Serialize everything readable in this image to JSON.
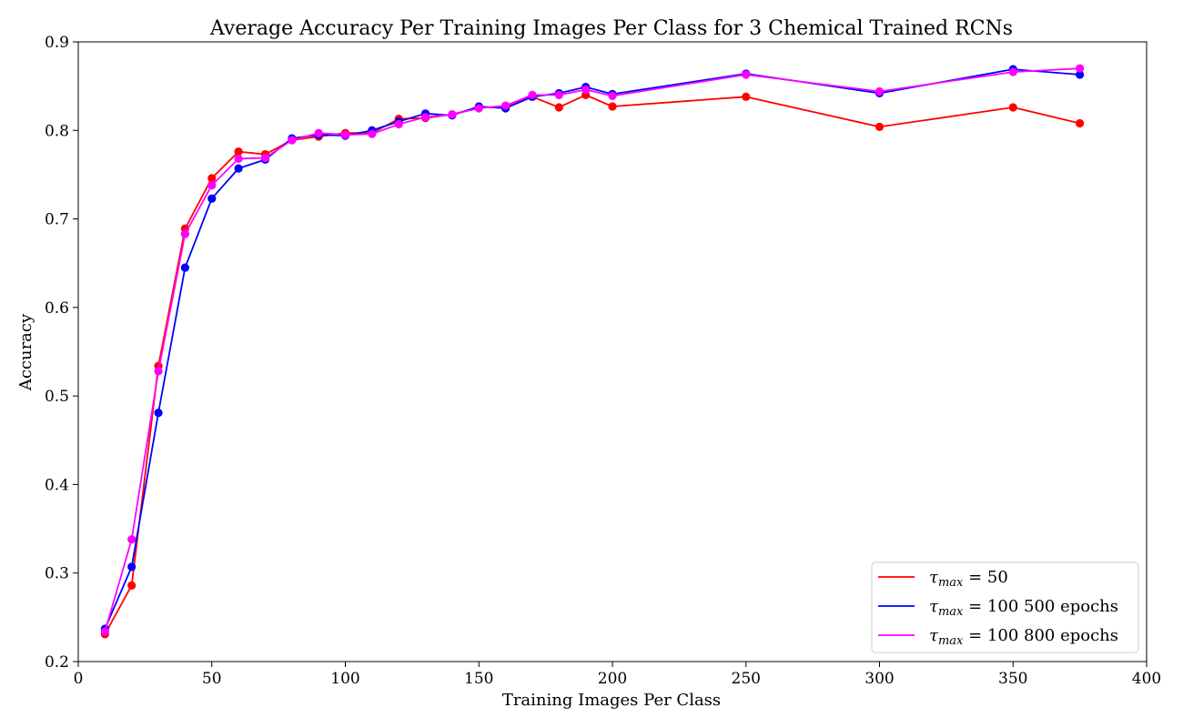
{
  "chart_data": {
    "type": "line",
    "title": "Average Accuracy Per Training Images Per Class for 3 Chemical Trained RCNs",
    "xlabel": "Training Images Per Class",
    "ylabel": "Accuracy",
    "xlim": [
      0,
      400
    ],
    "ylim": [
      0.2,
      0.9
    ],
    "xticks": [
      0,
      50,
      100,
      150,
      200,
      250,
      300,
      350,
      400
    ],
    "yticks": [
      0.2,
      0.3,
      0.4,
      0.5,
      0.6,
      0.7,
      0.8,
      0.9
    ],
    "grid": false,
    "legend_position": "lower-right",
    "x": [
      10,
      20,
      30,
      40,
      50,
      60,
      70,
      80,
      90,
      100,
      110,
      120,
      130,
      140,
      150,
      160,
      170,
      180,
      190,
      200,
      250,
      300,
      350,
      375
    ],
    "series": [
      {
        "name": "τmax = 50",
        "color": "#ff0000",
        "values": [
          0.231,
          0.286,
          0.534,
          0.689,
          0.746,
          0.776,
          0.773,
          0.789,
          0.793,
          0.797,
          0.797,
          0.813,
          0.814,
          0.818,
          0.826,
          0.826,
          0.838,
          0.826,
          0.84,
          0.827,
          0.838,
          0.804,
          0.826,
          0.808
        ]
      },
      {
        "name": "τmax = 100 500 epochs",
        "color": "#0000ff",
        "values": [
          0.237,
          0.307,
          0.481,
          0.645,
          0.723,
          0.757,
          0.767,
          0.791,
          0.795,
          0.794,
          0.8,
          0.81,
          0.819,
          0.817,
          0.827,
          0.825,
          0.838,
          0.842,
          0.849,
          0.841,
          0.864,
          0.842,
          0.869,
          0.863
        ]
      },
      {
        "name": "τmax = 100 800 epochs",
        "color": "#ff00ff",
        "values": [
          0.234,
          0.338,
          0.528,
          0.683,
          0.738,
          0.768,
          0.769,
          0.789,
          0.797,
          0.795,
          0.796,
          0.807,
          0.815,
          0.818,
          0.825,
          0.828,
          0.84,
          0.84,
          0.846,
          0.839,
          0.863,
          0.844,
          0.866,
          0.87
        ]
      }
    ],
    "legend": [
      {
        "symbol": "τ",
        "sub": "max",
        "rest": " = 50"
      },
      {
        "symbol": "τ",
        "sub": "max",
        "rest": " = 100 500 epochs"
      },
      {
        "symbol": "τ",
        "sub": "max",
        "rest": " = 100 800 epochs"
      }
    ]
  }
}
